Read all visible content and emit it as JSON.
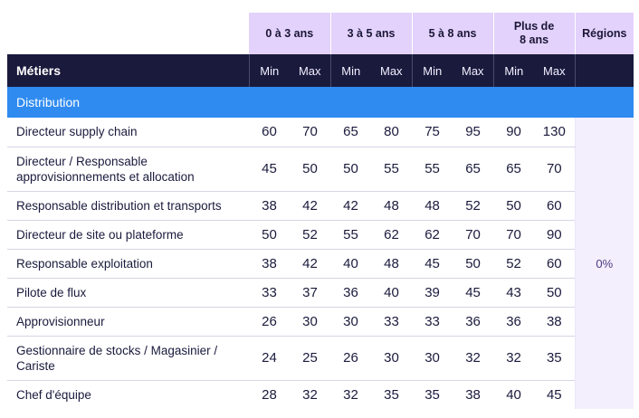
{
  "table": {
    "group_headers": [
      "0 à 3 ans",
      "3 à 5 ans",
      "5 à 8 ans",
      "Plus de 8 ans",
      "Régions"
    ],
    "job_header": "Métiers",
    "min_label": "Min",
    "max_label": "Max",
    "section": "Distribution",
    "regions_value": "0%",
    "rows": [
      {
        "job": "Directeur supply chain",
        "values": [
          "60",
          "70",
          "65",
          "80",
          "75",
          "95",
          "90",
          "130"
        ]
      },
      {
        "job": "Directeur / Responsable approvisionnements et allocation",
        "values": [
          "45",
          "50",
          "50",
          "55",
          "55",
          "65",
          "65",
          "70"
        ]
      },
      {
        "job": "Responsable distribution et transports",
        "values": [
          "38",
          "42",
          "42",
          "48",
          "48",
          "52",
          "50",
          "60"
        ]
      },
      {
        "job": "Directeur de site ou plateforme",
        "values": [
          "50",
          "52",
          "55",
          "62",
          "62",
          "70",
          "70",
          "90"
        ]
      },
      {
        "job": "Responsable exploitation",
        "values": [
          "38",
          "42",
          "40",
          "48",
          "45",
          "50",
          "52",
          "60"
        ]
      },
      {
        "job": "Pilote de flux",
        "values": [
          "33",
          "37",
          "36",
          "40",
          "39",
          "45",
          "43",
          "50"
        ]
      },
      {
        "job": "Approvisionneur",
        "values": [
          "26",
          "30",
          "30",
          "33",
          "33",
          "36",
          "36",
          "38"
        ]
      },
      {
        "job": "Gestionnaire de stocks / Magasinier / Cariste",
        "values": [
          "24",
          "25",
          "26",
          "30",
          "30",
          "32",
          "32",
          "35"
        ]
      },
      {
        "job": "Chef d'équipe",
        "values": [
          "28",
          "32",
          "32",
          "35",
          "35",
          "38",
          "40",
          "45"
        ]
      }
    ]
  }
}
